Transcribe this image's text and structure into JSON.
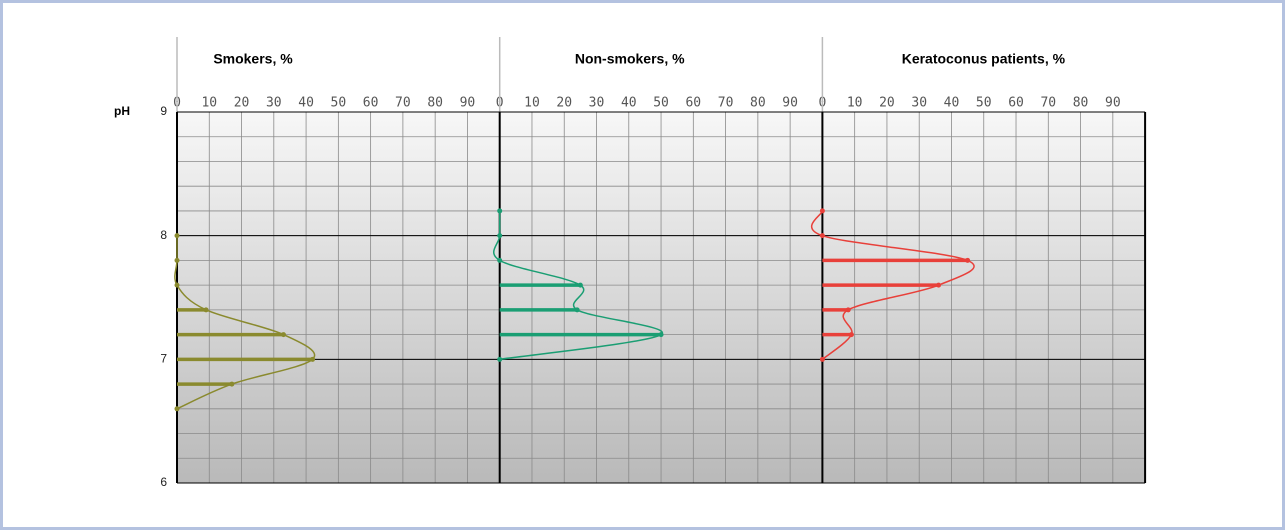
{
  "chart_data": [
    {
      "type": "bar",
      "orientation": "horizontal",
      "title": "Smokers, %",
      "y_label": "pH",
      "y": [
        6.6,
        6.8,
        7.0,
        7.2,
        7.4,
        7.6,
        7.8,
        8.0
      ],
      "values": [
        0,
        17,
        42,
        33,
        9,
        0,
        0,
        0
      ],
      "color": "#8a8a2e",
      "xlim": [
        0,
        100
      ],
      "xticks": [
        0,
        10,
        20,
        30,
        40,
        50,
        60,
        70,
        80,
        90
      ],
      "ylim": [
        6,
        9
      ],
      "yticks": [
        6,
        7,
        8,
        9
      ],
      "minor_grid_step": 0.2,
      "grid": true
    },
    {
      "type": "bar",
      "orientation": "horizontal",
      "title": "Non-smokers, %",
      "y": [
        7.0,
        7.2,
        7.4,
        7.6,
        7.8,
        8.0,
        8.2
      ],
      "values": [
        0,
        50,
        24,
        25,
        0,
        0,
        0
      ],
      "color": "#1a9e73",
      "xlim": [
        0,
        100
      ],
      "xticks": [
        0,
        10,
        20,
        30,
        40,
        50,
        60,
        70,
        80,
        90
      ],
      "ylim": [
        6,
        9
      ],
      "minor_grid_step": 0.2,
      "grid": true
    },
    {
      "type": "bar",
      "orientation": "horizontal",
      "title": "Keratoconus patients, %",
      "y": [
        7.0,
        7.2,
        7.4,
        7.6,
        7.8,
        8.0,
        8.2
      ],
      "values": [
        0,
        9,
        8,
        36,
        45,
        0,
        0
      ],
      "color": "#e8403a",
      "xlim": [
        0,
        100
      ],
      "xticks": [
        0,
        10,
        20,
        30,
        40,
        50,
        60,
        70,
        80,
        90
      ],
      "ylim": [
        6,
        9
      ],
      "minor_grid_step": 0.2,
      "grid": true
    }
  ]
}
